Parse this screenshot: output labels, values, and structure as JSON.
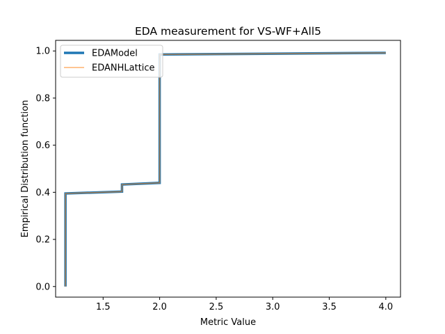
{
  "chart_data": {
    "type": "line",
    "title": "EDA measurement for VS-WF+All5",
    "xlabel": "Metric Value",
    "ylabel": "Empirical Distribution function",
    "xlim": [
      1.08,
      4.13
    ],
    "ylim": [
      -0.045,
      1.045
    ],
    "xticks": [
      1.5,
      2.0,
      2.5,
      3.0,
      3.5,
      4.0
    ],
    "xtick_labels": [
      "1.5",
      "2.0",
      "2.5",
      "3.0",
      "3.5",
      "4.0"
    ],
    "yticks": [
      0.0,
      0.2,
      0.4,
      0.6,
      0.8,
      1.0
    ],
    "ytick_labels": [
      "0.0",
      "0.2",
      "0.4",
      "0.6",
      "0.8",
      "1.0"
    ],
    "grid": false,
    "legend_position": "top-left",
    "series": [
      {
        "name": "EDAModel",
        "color": "#1f77b4",
        "style": "step",
        "x": [
          1.167,
          1.167,
          1.667,
          1.667,
          2.0,
          2.0,
          4.0
        ],
        "y": [
          0.0,
          0.395,
          0.403,
          0.433,
          0.44,
          0.985,
          0.992
        ]
      },
      {
        "name": "EDANHLattice",
        "color": "#ff7f0e",
        "style": "step",
        "x": [
          1.167,
          1.167,
          1.667,
          1.667,
          2.0,
          2.0,
          4.0
        ],
        "y": [
          0.0,
          0.395,
          0.403,
          0.433,
          0.44,
          0.985,
          0.992
        ]
      }
    ]
  }
}
